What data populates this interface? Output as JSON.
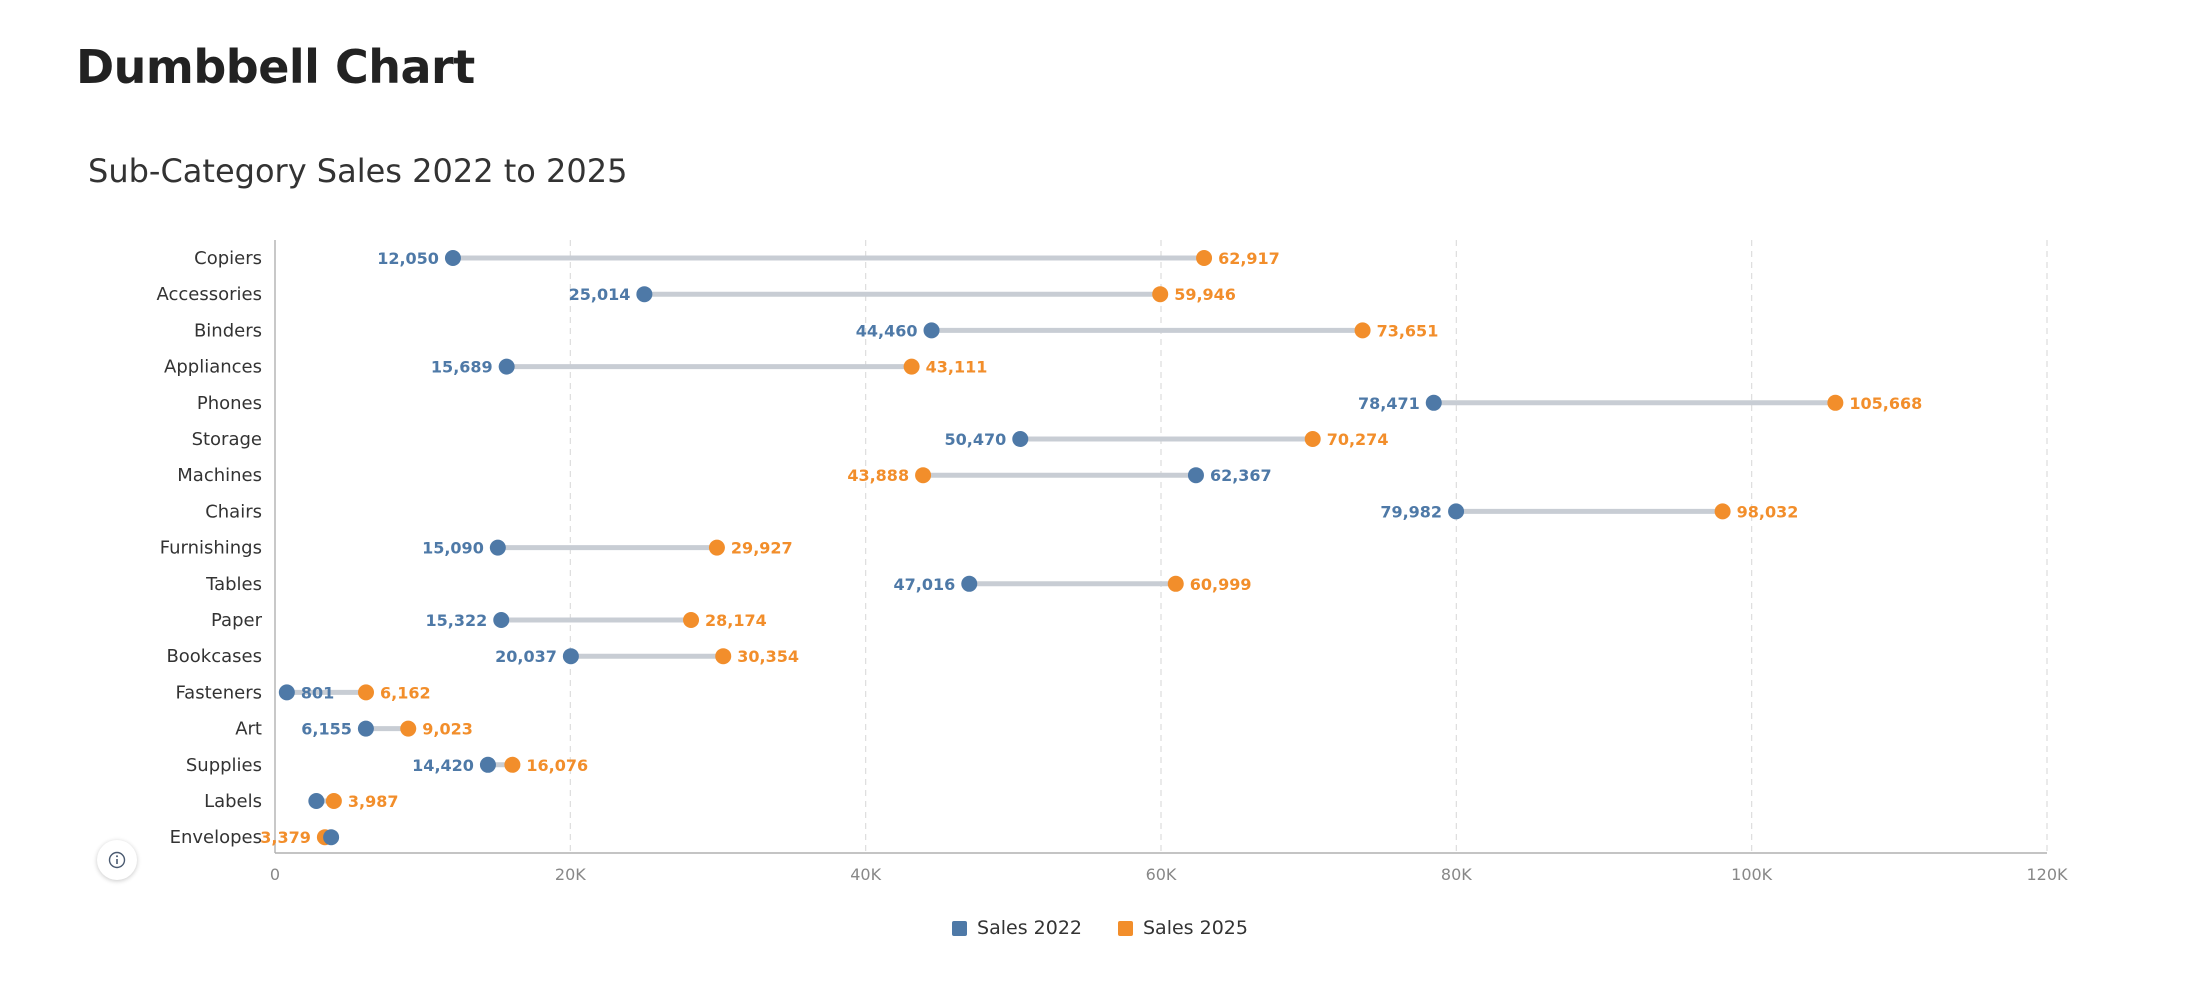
{
  "page": {
    "title": "Dumbbell Chart"
  },
  "colors": {
    "series_2022": "#4e79a7",
    "series_2025": "#f28e2b",
    "connector": "#c8cdd4",
    "gridline": "#dddddd",
    "axis": "#b0b0b0",
    "tick_text": "#888888",
    "category_text": "#333333"
  },
  "icons": {
    "info": "info-icon"
  },
  "legend": {
    "items": [
      {
        "label": "Sales 2022",
        "color": "#4e79a7"
      },
      {
        "label": "Sales 2025",
        "color": "#f28e2b"
      }
    ]
  },
  "chart_data": {
    "type": "dumbbell",
    "title": "Sub-Category Sales 2022 to 2025",
    "xlabel": "",
    "ylabel": "",
    "xlim": [
      0,
      120000
    ],
    "x_ticks": [
      0,
      20000,
      40000,
      60000,
      80000,
      100000,
      120000
    ],
    "x_tick_labels": [
      "0",
      "20K",
      "40K",
      "60K",
      "80K",
      "100K",
      "120K"
    ],
    "grid": "vertical dashed",
    "legend_position": "bottom-center",
    "categories": [
      "Copiers",
      "Accessories",
      "Binders",
      "Appliances",
      "Phones",
      "Storage",
      "Machines",
      "Chairs",
      "Furnishings",
      "Tables",
      "Paper",
      "Bookcases",
      "Fasteners",
      "Art",
      "Supplies",
      "Labels",
      "Envelopes"
    ],
    "series": [
      {
        "name": "Sales 2022",
        "values": [
          12050,
          25014,
          44460,
          15689,
          78471,
          50470,
          62367,
          79982,
          15090,
          47016,
          15322,
          20037,
          801,
          6155,
          14420,
          2800,
          3800
        ],
        "labels": [
          "12,050",
          "25,014",
          "44,460",
          "15,689",
          "78,471",
          "50,470",
          "62,367",
          "79,982",
          "15,090",
          "47,016",
          "15,322",
          "20,037",
          "801",
          "6,155",
          "14,420",
          "",
          ""
        ]
      },
      {
        "name": "Sales 2025",
        "values": [
          62917,
          59946,
          73651,
          43111,
          105668,
          70274,
          43888,
          98032,
          29927,
          60999,
          28174,
          30354,
          6162,
          9023,
          16076,
          3987,
          3379
        ],
        "labels": [
          "62,917",
          "59,946",
          "73,651",
          "43,111",
          "105,668",
          "70,274",
          "43,888",
          "98,032",
          "29,927",
          "60,999",
          "28,174",
          "30,354",
          "6,162",
          "9,023",
          "16,076",
          "3,987",
          "3,379"
        ]
      }
    ]
  }
}
